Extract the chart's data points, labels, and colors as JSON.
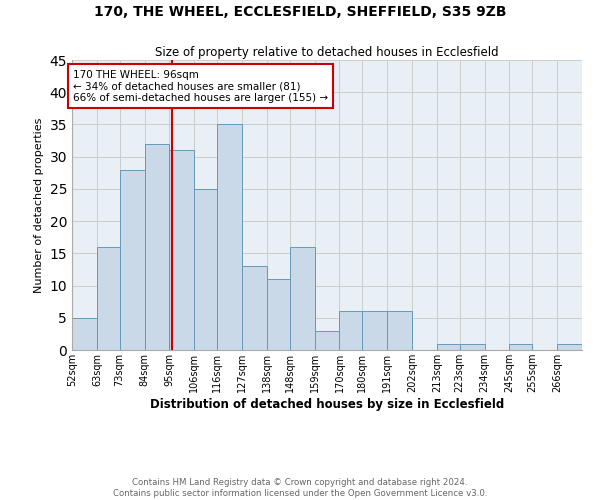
{
  "title": "170, THE WHEEL, ECCLESFIELD, SHEFFIELD, S35 9ZB",
  "subtitle": "Size of property relative to detached houses in Ecclesfield",
  "xlabel": "Distribution of detached houses by size in Ecclesfield",
  "ylabel": "Number of detached properties",
  "bin_labels": [
    "52sqm",
    "63sqm",
    "73sqm",
    "84sqm",
    "95sqm",
    "106sqm",
    "116sqm",
    "127sqm",
    "138sqm",
    "148sqm",
    "159sqm",
    "170sqm",
    "180sqm",
    "191sqm",
    "202sqm",
    "213sqm",
    "223sqm",
    "234sqm",
    "245sqm",
    "255sqm",
    "266sqm"
  ],
  "bin_edges": [
    52,
    63,
    73,
    84,
    95,
    106,
    116,
    127,
    138,
    148,
    159,
    170,
    180,
    191,
    202,
    213,
    223,
    234,
    245,
    255,
    266,
    277
  ],
  "bar_heights": [
    5,
    16,
    28,
    32,
    31,
    25,
    35,
    13,
    11,
    16,
    3,
    6,
    6,
    6,
    0,
    1,
    1,
    0,
    1,
    0,
    1
  ],
  "bar_color": "#c9d9e8",
  "bar_edge_color": "#6699bb",
  "property_value": 96,
  "vline_color": "#cc0000",
  "annotation_box_edge": "#cc0000",
  "annotation_text_line1": "170 THE WHEEL: 96sqm",
  "annotation_text_line2": "← 34% of detached houses are smaller (81)",
  "annotation_text_line3": "66% of semi-detached houses are larger (155) →",
  "ylim": [
    0,
    45
  ],
  "yticks": [
    0,
    5,
    10,
    15,
    20,
    25,
    30,
    35,
    40,
    45
  ],
  "grid_color": "#cccccc",
  "background_color": "#e8eff5",
  "footer_line1": "Contains HM Land Registry data © Crown copyright and database right 2024.",
  "footer_line2": "Contains public sector information licensed under the Open Government Licence v3.0."
}
